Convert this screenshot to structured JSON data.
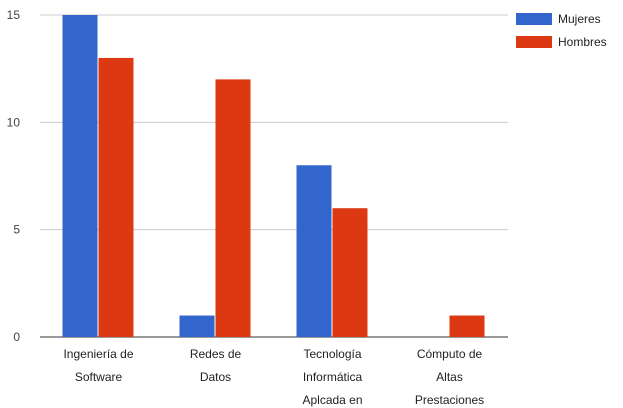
{
  "chart_data": {
    "type": "bar",
    "categories": [
      [
        "Ingeniería de",
        "Software"
      ],
      [
        "Redes de",
        "Datos"
      ],
      [
        "Tecnología",
        "Informática",
        "Aplcada en"
      ],
      [
        "Cómputo de",
        "Altas",
        "Prestaciones"
      ]
    ],
    "series": [
      {
        "name": "Mujeres",
        "values": [
          15,
          1,
          8,
          0
        ],
        "color": "#3366cc"
      },
      {
        "name": "Hombres",
        "values": [
          13,
          12,
          6,
          1
        ],
        "color": "#dc3912"
      }
    ],
    "yticks": [
      0,
      5,
      10,
      15
    ],
    "ylim": [
      0,
      15
    ],
    "grid": true,
    "legend_position": "top-right"
  }
}
